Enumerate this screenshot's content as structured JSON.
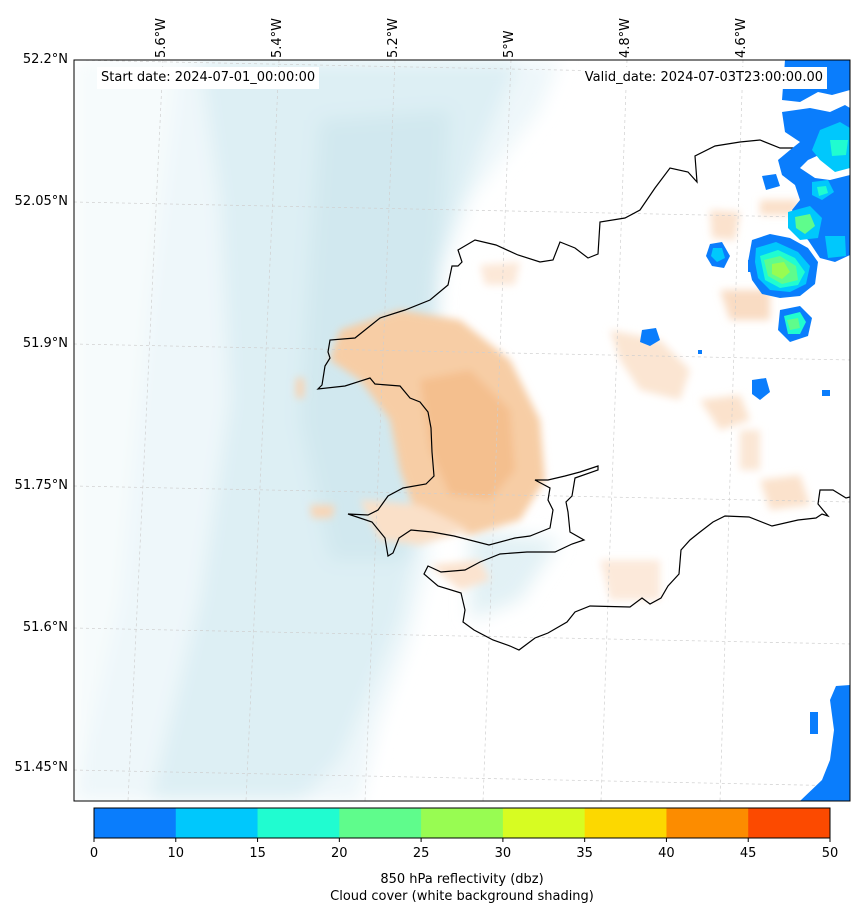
{
  "map": {
    "start_date": "Start date: 2024-07-01_00:00:00",
    "valid_date": "Valid_date: 2024-07-03T23:00:00.00",
    "lon_labels": [
      "5.6°W",
      "5.4°W",
      "5.2°W",
      "5°W",
      "4.8°W",
      "4.6°W"
    ],
    "lat_labels": [
      "52.2°N",
      "52.05°N",
      "51.9°N",
      "51.75°N",
      "51.6°N",
      "51.45°N"
    ],
    "region": "Pembrokeshire coast, Wales",
    "cloud_shading_color": "#d6ebf1",
    "reflectivity_shading_color": "#f6c79c"
  },
  "colorbar": {
    "ticks": [
      "0",
      "10",
      "15",
      "20",
      "25",
      "30",
      "35",
      "40",
      "45",
      "50"
    ],
    "colors": [
      "#0a7dfc",
      "#00c8fc",
      "#20fcd0",
      "#5ffc8c",
      "#98fc52",
      "#d7fc22",
      "#fcd800",
      "#fc8c00",
      "#fc4a00"
    ],
    "label_line1": "850 hPa reflectivity (dbz)",
    "label_line2": "Cloud cover (white background shading)"
  }
}
